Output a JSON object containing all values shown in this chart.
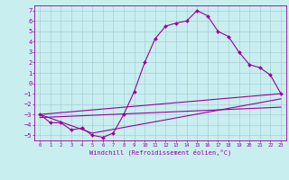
{
  "xlabel": "Windchill (Refroidissement éolien,°C)",
  "bg_color": "#c8eef0",
  "line_color": "#990099",
  "xlim": [
    -0.5,
    23.5
  ],
  "ylim": [
    -5.5,
    7.5
  ],
  "xticks": [
    0,
    1,
    2,
    3,
    4,
    5,
    6,
    7,
    8,
    9,
    10,
    11,
    12,
    13,
    14,
    15,
    16,
    17,
    18,
    19,
    20,
    21,
    22,
    23
  ],
  "yticks": [
    -5,
    -4,
    -3,
    -2,
    -1,
    0,
    1,
    2,
    3,
    4,
    5,
    6,
    7
  ],
  "series1_x": [
    0,
    1,
    2,
    3,
    4,
    5,
    6,
    7,
    8,
    9,
    10,
    11,
    12,
    13,
    14,
    15,
    16,
    17,
    18,
    19,
    20,
    21,
    22,
    23
  ],
  "series1_y": [
    -3.0,
    -3.8,
    -3.8,
    -4.5,
    -4.3,
    -5.0,
    -5.2,
    -4.8,
    -3.0,
    -0.8,
    2.0,
    4.3,
    5.5,
    5.8,
    6.0,
    7.0,
    6.5,
    5.0,
    4.5,
    3.0,
    1.8,
    1.5,
    0.8,
    -1.0
  ],
  "series2_x": [
    0,
    23
  ],
  "series2_y": [
    -3.0,
    -1.0
  ],
  "series3_x": [
    0,
    5,
    23
  ],
  "series3_y": [
    -3.0,
    -4.8,
    -1.5
  ],
  "series4_x": [
    0,
    23
  ],
  "series4_y": [
    -3.3,
    -2.3
  ]
}
